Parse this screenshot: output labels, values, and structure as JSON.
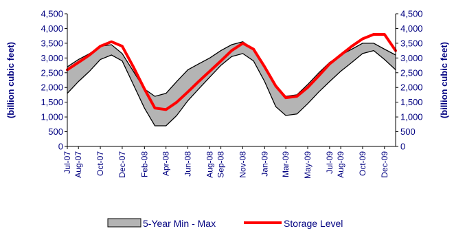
{
  "chart_data": {
    "type": "area",
    "title": "",
    "ylabel_left": "(billion cubic feet)",
    "ylabel_right": "(billion cubic feet)",
    "ylim": [
      0,
      4500
    ],
    "yticks": [
      "0",
      "500",
      "1,000",
      "1,500",
      "2,000",
      "2,500",
      "3,000",
      "3,500",
      "4,000",
      "4,500"
    ],
    "xlim": [
      "2007-07-01",
      "2010-01-01"
    ],
    "x_tick_labels": [
      "Jul-07",
      "Aug-07",
      "Oct-07",
      "Dec-07",
      "Feb-08",
      "Apr-08",
      "Jun-08",
      "Aug-08",
      "Sep-08",
      "Nov-08",
      "Jan-09",
      "Mar-09",
      "May-09",
      "Jul-09",
      "Aug-09",
      "Oct-09",
      "Dec-09"
    ],
    "x_tick_dates": [
      "2007-07-01",
      "2007-08-01",
      "2007-10-01",
      "2007-12-01",
      "2008-02-01",
      "2008-04-01",
      "2008-06-01",
      "2008-08-01",
      "2008-09-01",
      "2008-11-01",
      "2009-01-01",
      "2009-03-01",
      "2009-05-01",
      "2009-07-01",
      "2009-08-01",
      "2009-10-01",
      "2009-12-01"
    ],
    "grid": false,
    "legend": {
      "position": "bottom",
      "range_label": "5-Year Min - Max",
      "line_label": "Storage Level"
    },
    "colors": {
      "range_fill": "#b4b4b4",
      "range_edge": "#000000",
      "storage_line": "#ff0000",
      "text": "#000080"
    },
    "series": [
      {
        "name": "5-Year Min - Max",
        "x": [
          "2007-07-01",
          "2007-08-01",
          "2007-09-01",
          "2007-10-01",
          "2007-11-01",
          "2007-12-01",
          "2008-01-01",
          "2008-02-01",
          "2008-03-01",
          "2008-04-01",
          "2008-05-01",
          "2008-06-01",
          "2008-07-01",
          "2008-08-01",
          "2008-09-01",
          "2008-10-01",
          "2008-11-01",
          "2008-12-01",
          "2009-01-01",
          "2009-02-01",
          "2009-03-01",
          "2009-04-01",
          "2009-05-01",
          "2009-06-01",
          "2009-07-01",
          "2009-08-01",
          "2009-09-01",
          "2009-10-01",
          "2009-11-01",
          "2009-12-01",
          "2010-01-01"
        ],
        "min": [
          1800,
          2200,
          2550,
          2950,
          3100,
          2900,
          2100,
          1300,
          700,
          700,
          1050,
          1550,
          1950,
          2350,
          2750,
          3050,
          3150,
          2900,
          2200,
          1350,
          1050,
          1100,
          1450,
          1850,
          2200,
          2550,
          2850,
          3150,
          3250,
          2950,
          2600
        ],
        "max": [
          2700,
          2950,
          3150,
          3400,
          3450,
          3150,
          2550,
          1950,
          1700,
          1800,
          2200,
          2600,
          2800,
          3000,
          3250,
          3450,
          3550,
          3300,
          2650,
          2050,
          1700,
          1750,
          2100,
          2500,
          2850,
          3100,
          3300,
          3500,
          3500,
          3300,
          3100
        ]
      },
      {
        "name": "Storage Level",
        "x": [
          "2007-07-01",
          "2007-08-01",
          "2007-09-01",
          "2007-10-01",
          "2007-11-01",
          "2007-12-01",
          "2008-01-01",
          "2008-02-01",
          "2008-03-01",
          "2008-04-01",
          "2008-05-01",
          "2008-06-01",
          "2008-07-01",
          "2008-08-01",
          "2008-09-01",
          "2008-10-01",
          "2008-11-01",
          "2008-12-01",
          "2009-01-01",
          "2009-02-01",
          "2009-03-01",
          "2009-04-01",
          "2009-05-01",
          "2009-06-01",
          "2009-07-01",
          "2009-08-01",
          "2009-09-01",
          "2009-10-01",
          "2009-11-01",
          "2009-12-01",
          "2010-01-01"
        ],
        "values": [
          2600,
          2850,
          3100,
          3400,
          3550,
          3400,
          2700,
          1950,
          1300,
          1250,
          1500,
          1850,
          2200,
          2550,
          2900,
          3250,
          3500,
          3300,
          2700,
          2050,
          1650,
          1700,
          2000,
          2400,
          2800,
          3100,
          3400,
          3650,
          3800,
          3800,
          3250
        ]
      }
    ]
  }
}
